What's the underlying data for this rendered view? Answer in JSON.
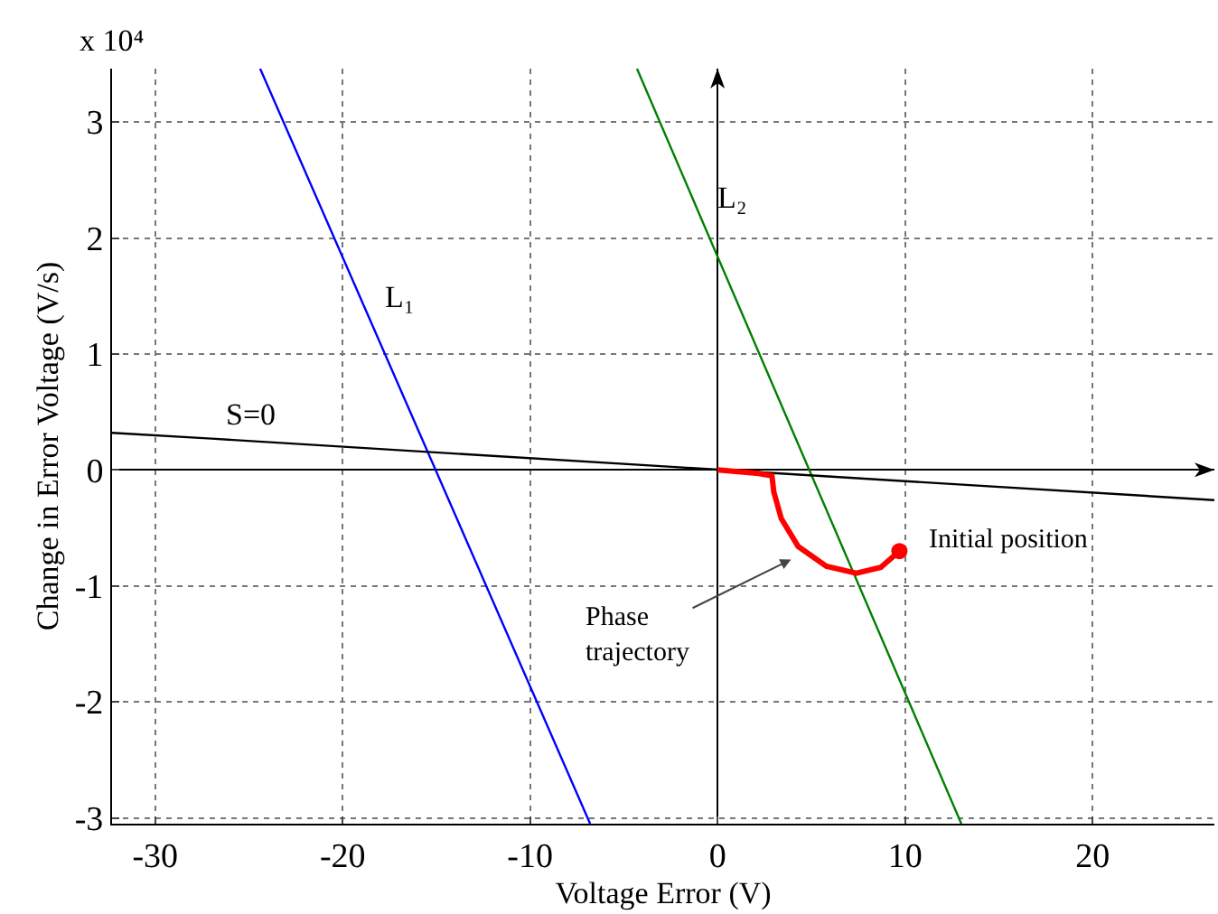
{
  "chart_data": {
    "type": "line",
    "xlabel": "Voltage Error (V)",
    "ylabel": "Change in Error Voltage (V/s)",
    "xlim": [
      -32.3,
      26.5
    ],
    "ylim": [
      -3.05,
      3.46
    ],
    "xticks": [
      -30,
      -20,
      -10,
      0,
      10,
      20
    ],
    "yticks": [
      -3,
      -2,
      -1,
      0,
      1,
      2,
      3
    ],
    "grid": true,
    "legend": false,
    "line_style": "solid",
    "marker": "none",
    "series": [
      {
        "name": "L₁",
        "color": "#0000ff",
        "x": [
          -24.4,
          -18.5,
          -6.8
        ],
        "values": [
          3.46,
          1.28,
          -3.05
        ]
      },
      {
        "name": "L₂",
        "color": "#008000",
        "x": [
          -4.3,
          -0.8,
          13.0
        ],
        "values": [
          3.46,
          2.14,
          -3.05
        ]
      },
      {
        "name": "S=0",
        "color": "#000000",
        "x": [
          -32.3,
          -27,
          26.5
        ],
        "values": [
          0.32,
          0.27,
          -0.26
        ]
      },
      {
        "color": "#ff0000",
        "x": [
          9.7,
          8.7,
          7.4,
          5.8,
          4.3,
          3.4,
          3.0,
          2.9,
          2.2,
          0
        ],
        "values": [
          -0.7,
          -0.84,
          -0.89,
          -0.83,
          -0.66,
          -0.42,
          -0.19,
          -0.05,
          -0.03,
          0
        ]
      },
      {
        "type": "scatter",
        "marker": "circle",
        "color": "#ff0000",
        "x": [
          9.7
        ],
        "values": [
          -0.7
        ]
      }
    ],
    "annotations": [
      "x 10⁴",
      "Phase\ntrajectory",
      {
        "text": "Initial position",
        "x": 9.7,
        "y": -0.7
      }
    ]
  }
}
